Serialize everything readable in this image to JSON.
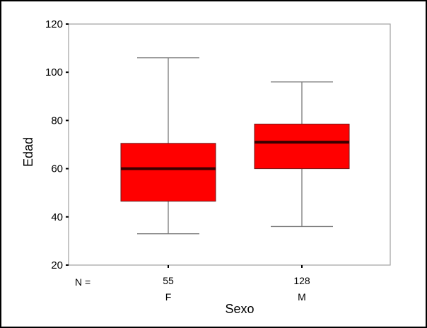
{
  "chart_data": {
    "type": "boxplot",
    "xlabel": "Sexo",
    "ylabel": "Edad",
    "ylim": [
      20,
      120
    ],
    "yticks": [
      20,
      40,
      60,
      80,
      100,
      120
    ],
    "n_prefix": "N =",
    "box_color": "#ff0000",
    "median_color": "#3a0000",
    "series": [
      {
        "category": "F",
        "n": "55",
        "min": 33,
        "q1": 46.5,
        "median": 60,
        "q3": 70.5,
        "max": 106
      },
      {
        "category": "M",
        "n": "128",
        "min": 36,
        "q1": 60,
        "median": 71,
        "q3": 78.5,
        "max": 96
      }
    ]
  }
}
